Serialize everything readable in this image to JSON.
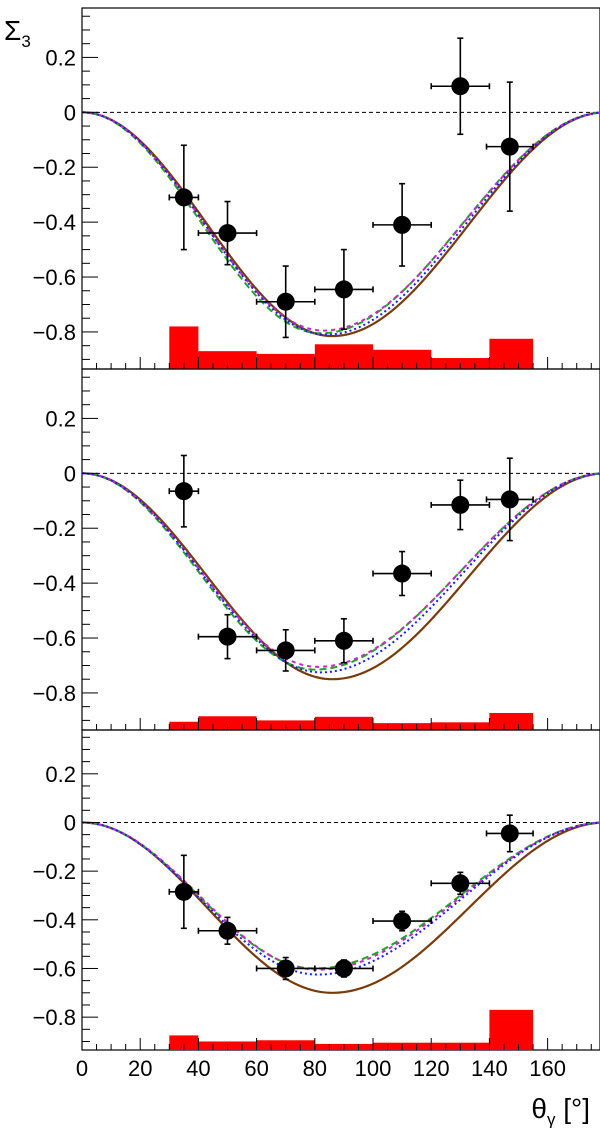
{
  "chart_data": {
    "type": "scatter",
    "ylabel": {
      "symbol": "Σ",
      "subscript": "3"
    },
    "xlabel": {
      "symbol": "θ",
      "subscript": "γ",
      "unit": " [°]"
    },
    "xlim": [
      0,
      178
    ],
    "ylim": [
      -0.935,
      0.38
    ],
    "x_ticks": [
      0,
      20,
      40,
      60,
      80,
      100,
      120,
      140,
      160
    ],
    "x_tick_labels": [
      "0",
      "20",
      "40",
      "60",
      "80",
      "100",
      "120",
      "140",
      "160"
    ],
    "y_ticks": [
      0.2,
      0,
      -0.2,
      -0.4,
      -0.6,
      -0.8
    ],
    "y_tick_labels": [
      "0.2",
      "0",
      "−0.2",
      "−0.4",
      "−0.6",
      "−0.8"
    ],
    "reference_line": {
      "y": 0,
      "style": "dashed"
    },
    "colors": {
      "points": "#000000",
      "systematic_bars": "#ff0000",
      "model_solid": "#7a3b0a",
      "model_dash_green": "#1fa51f",
      "model_dash_magenta": "#c828c8",
      "model_dot_blue": "#1a1aff"
    },
    "panels": [
      {
        "points": [
          {
            "x": 35,
            "xerr": 5,
            "y": -0.31,
            "yerr": 0.19
          },
          {
            "x": 50,
            "xerr": 10,
            "y": -0.44,
            "yerr": 0.115
          },
          {
            "x": 70,
            "xerr": 10,
            "y": -0.69,
            "yerr": 0.13
          },
          {
            "x": 90,
            "xerr": 10,
            "y": -0.645,
            "yerr": 0.145
          },
          {
            "x": 110,
            "xerr": 10,
            "y": -0.41,
            "yerr": 0.15
          },
          {
            "x": 130,
            "xerr": 10,
            "y": 0.095,
            "yerr": 0.175
          },
          {
            "x": 147,
            "xerr": 8,
            "y": -0.125,
            "yerr": 0.235
          }
        ],
        "systematic": [
          {
            "x0": 30,
            "x1": 40,
            "height": 0.155
          },
          {
            "x0": 40,
            "x1": 60,
            "height": 0.065
          },
          {
            "x0": 60,
            "x1": 80,
            "height": 0.055
          },
          {
            "x0": 80,
            "x1": 100,
            "height": 0.09
          },
          {
            "x0": 100,
            "x1": 120,
            "height": 0.07
          },
          {
            "x0": 120,
            "x1": 140,
            "height": 0.04
          },
          {
            "x0": 140,
            "x1": 155,
            "height": 0.11
          }
        ],
        "models": {
          "solid_brown": {
            "amplitude": -0.815,
            "peak_x": 86
          },
          "dash_green": {
            "amplitude": -0.805,
            "peak_x": 82
          },
          "dash_magenta": {
            "amplitude": -0.795,
            "peak_x": 83
          },
          "dot_blue": {
            "amplitude": -0.81,
            "peak_x": 84
          }
        }
      },
      {
        "points": [
          {
            "x": 35,
            "xerr": 5,
            "y": -0.065,
            "yerr": 0.13
          },
          {
            "x": 50,
            "xerr": 10,
            "y": -0.595,
            "yerr": 0.08
          },
          {
            "x": 70,
            "xerr": 10,
            "y": -0.645,
            "yerr": 0.075
          },
          {
            "x": 90,
            "xerr": 10,
            "y": -0.61,
            "yerr": 0.08
          },
          {
            "x": 110,
            "xerr": 10,
            "y": -0.365,
            "yerr": 0.08
          },
          {
            "x": 130,
            "xerr": 10,
            "y": -0.115,
            "yerr": 0.09
          },
          {
            "x": 147,
            "xerr": 8,
            "y": -0.095,
            "yerr": 0.15
          }
        ],
        "systematic": [
          {
            "x0": 30,
            "x1": 40,
            "height": 0.03
          },
          {
            "x0": 40,
            "x1": 60,
            "height": 0.05
          },
          {
            "x0": 60,
            "x1": 80,
            "height": 0.035
          },
          {
            "x0": 80,
            "x1": 100,
            "height": 0.048
          },
          {
            "x0": 100,
            "x1": 120,
            "height": 0.025
          },
          {
            "x0": 120,
            "x1": 140,
            "height": 0.028
          },
          {
            "x0": 140,
            "x1": 155,
            "height": 0.062
          }
        ],
        "models": {
          "solid_brown": {
            "amplitude": -0.75,
            "peak_x": 86
          },
          "dash_green": {
            "amplitude": -0.715,
            "peak_x": 80
          },
          "dash_magenta": {
            "amplitude": -0.705,
            "peak_x": 81
          },
          "dot_blue": {
            "amplitude": -0.725,
            "peak_x": 82
          }
        }
      },
      {
        "points": [
          {
            "x": 35,
            "xerr": 5,
            "y": -0.285,
            "yerr": 0.15
          },
          {
            "x": 50,
            "xerr": 10,
            "y": -0.445,
            "yerr": 0.055
          },
          {
            "x": 70,
            "xerr": 10,
            "y": -0.6,
            "yerr": 0.045
          },
          {
            "x": 90,
            "xerr": 10,
            "y": -0.6,
            "yerr": 0.035
          },
          {
            "x": 110,
            "xerr": 10,
            "y": -0.405,
            "yerr": 0.04
          },
          {
            "x": 130,
            "xerr": 10,
            "y": -0.25,
            "yerr": 0.045
          },
          {
            "x": 147,
            "xerr": 8,
            "y": -0.045,
            "yerr": 0.075
          }
        ],
        "systematic": [
          {
            "x0": 30,
            "x1": 40,
            "height": 0.06
          },
          {
            "x0": 40,
            "x1": 60,
            "height": 0.035
          },
          {
            "x0": 60,
            "x1": 80,
            "height": 0.04
          },
          {
            "x0": 80,
            "x1": 100,
            "height": 0.025
          },
          {
            "x0": 100,
            "x1": 120,
            "height": 0.03
          },
          {
            "x0": 120,
            "x1": 140,
            "height": 0.03
          },
          {
            "x0": 140,
            "x1": 155,
            "height": 0.165
          }
        ],
        "models": {
          "solid_brown": {
            "amplitude": -0.7,
            "peak_x": 86
          },
          "dash_green": {
            "amplitude": -0.6,
            "peak_x": 80
          },
          "dash_magenta": {
            "amplitude": -0.605,
            "peak_x": 81
          },
          "dot_blue": {
            "amplitude": -0.625,
            "peak_x": 81
          }
        }
      }
    ]
  }
}
